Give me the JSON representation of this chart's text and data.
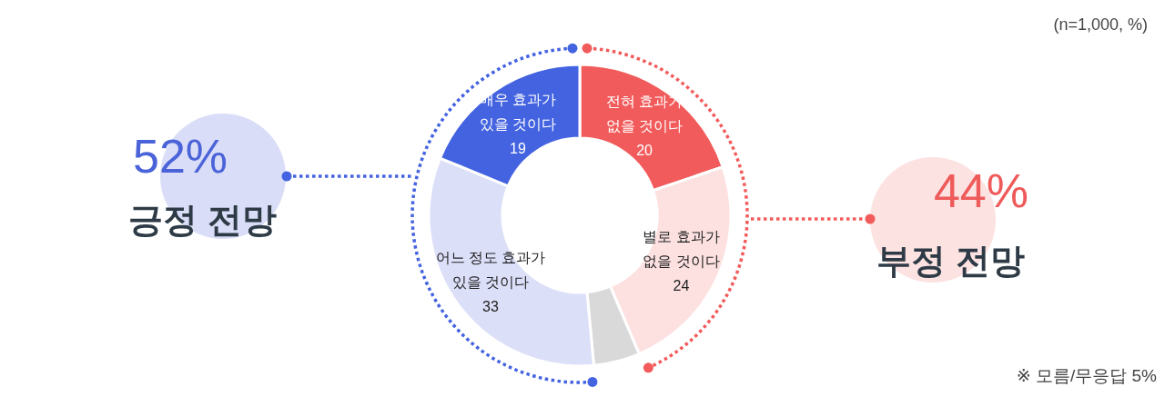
{
  "chart_data": {
    "type": "donut",
    "categories": [
      "전혀 효과가 없을 것이다",
      "별로 효과가 없을 것이다",
      null,
      "어느 정도 효과가 있을 것이다",
      "매우 효과가 있을 것이다"
    ],
    "values": [
      20,
      24,
      5,
      33,
      19
    ],
    "colors": [
      "#f25b5b",
      "#fde1e1",
      "#d9d9d9",
      "#dcdff8",
      "#4463e0"
    ],
    "value_labels": [
      "20",
      "24",
      null,
      "33",
      "19"
    ],
    "annotations": [
      "(n=1,000, %)",
      "52%",
      "긍정 전망",
      "44%",
      "부정 전망",
      "※ 모름/무응답 5%"
    ]
  }
}
